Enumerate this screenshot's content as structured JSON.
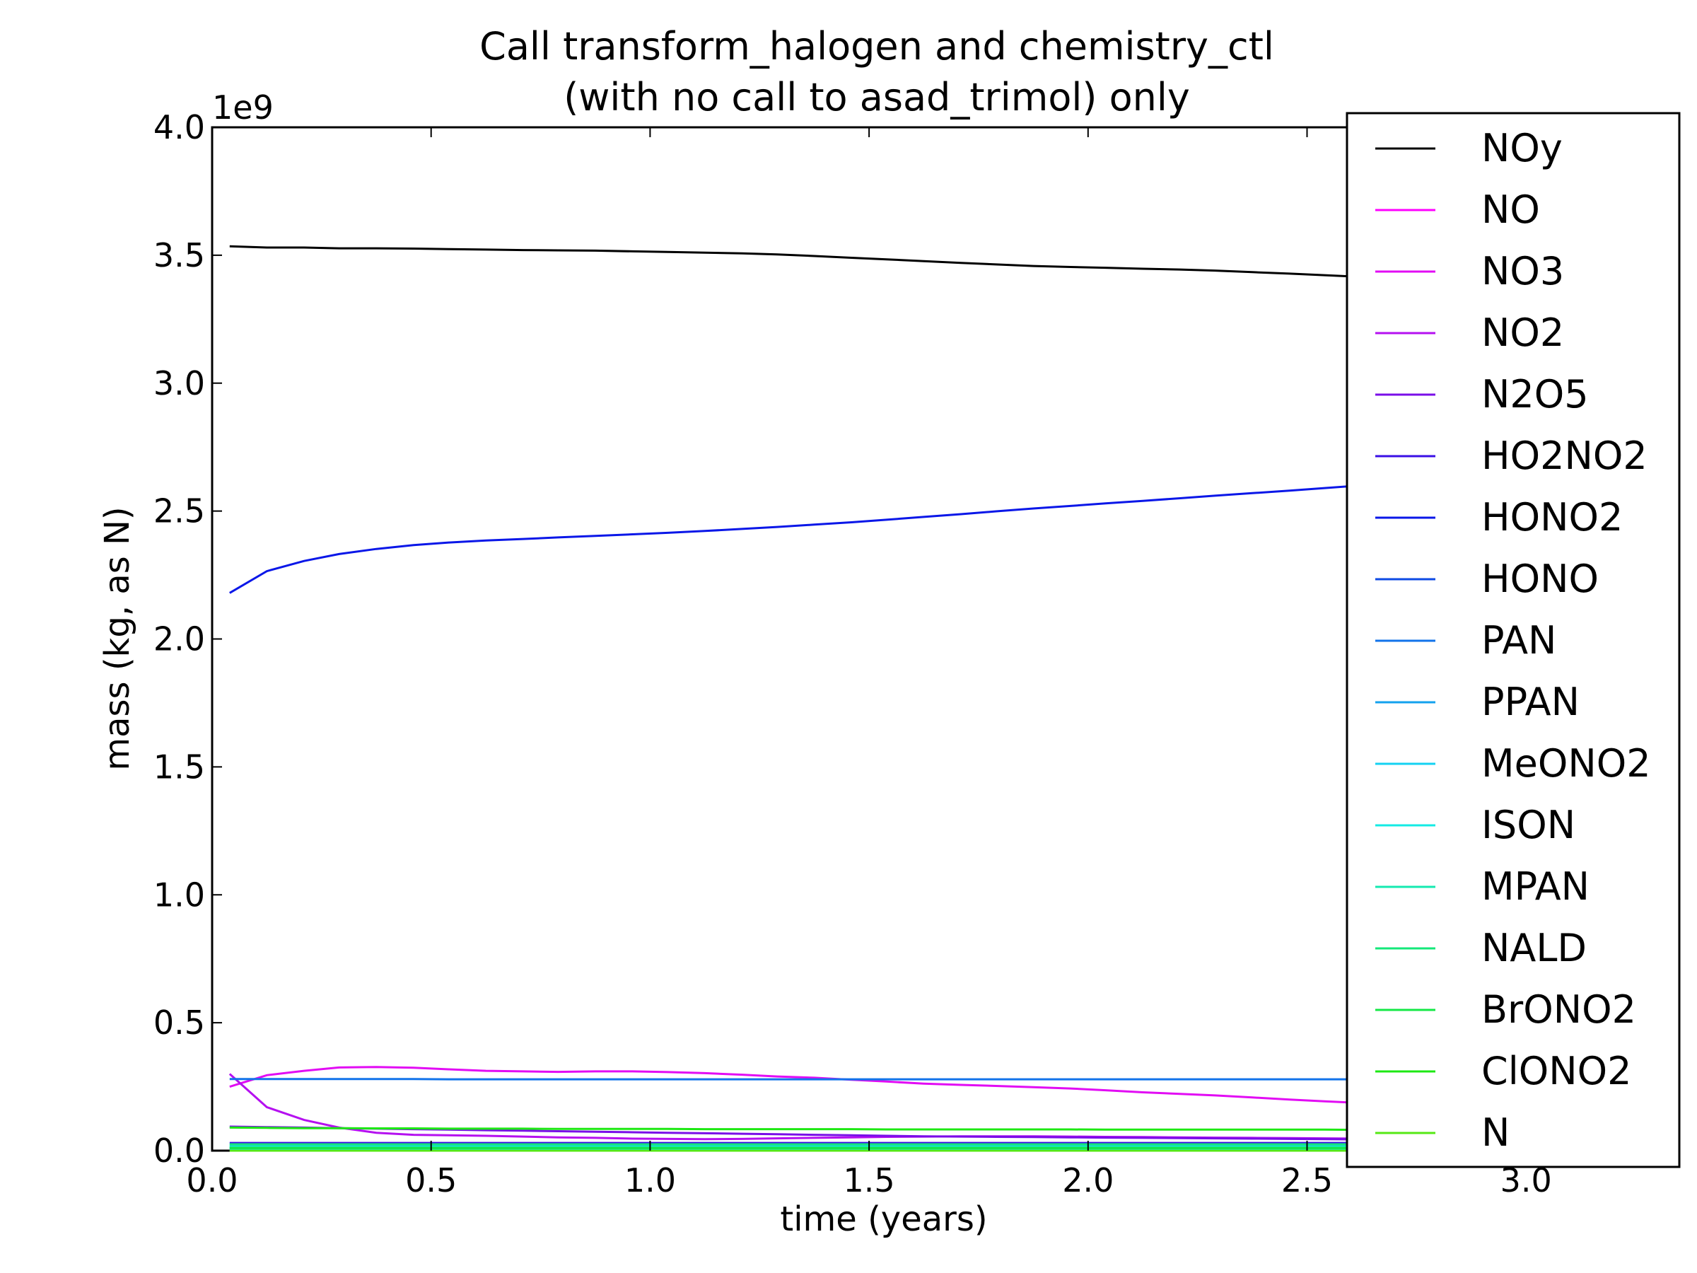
{
  "chart_data": {
    "type": "line",
    "title_line1": "Call transform_halogen and chemistry_ctl",
    "title_line2": "(with no call to asad_trimol) only",
    "xlabel": "time (years)",
    "ylabel": "mass (kg, as N)",
    "y_offset_label": "1e9",
    "xlim": [
      0.0,
      3.35
    ],
    "ylim": [
      0.0,
      4.0
    ],
    "x_scale": 1,
    "y_scale": 1000000000,
    "grid": false,
    "legend_position": "right",
    "x_ticks": [
      0.0,
      0.5,
      1.0,
      1.5,
      2.0,
      2.5,
      3.0
    ],
    "x_tick_labels": [
      "0.0",
      "0.5",
      "1.0",
      "1.5",
      "2.0",
      "2.5",
      "3.0"
    ],
    "y_ticks": [
      0.0,
      0.5,
      1.0,
      1.5,
      2.0,
      2.5,
      3.0,
      3.5,
      4.0
    ],
    "y_tick_labels": [
      "0.0",
      "0.5",
      "1.0",
      "1.5",
      "2.0",
      "2.5",
      "3.0",
      "3.5",
      "4.0"
    ],
    "x": [
      0.04,
      0.125,
      0.21,
      0.29,
      0.375,
      0.46,
      0.54,
      0.625,
      0.71,
      0.79,
      0.875,
      0.96,
      1.04,
      1.125,
      1.21,
      1.29,
      1.375,
      1.46,
      1.54,
      1.625,
      1.71,
      1.79,
      1.875,
      1.96,
      2.04,
      2.125,
      2.21,
      2.29,
      2.375,
      2.46,
      2.54,
      2.625,
      2.71,
      2.79,
      2.875,
      2.96,
      3.04,
      3.125,
      3.21,
      3.29
    ],
    "series": [
      {
        "name": "NOy",
        "color": "#000000",
        "values": [
          3.535,
          3.53,
          3.53,
          3.527,
          3.527,
          3.526,
          3.524,
          3.522,
          3.52,
          3.519,
          3.518,
          3.515,
          3.513,
          3.51,
          3.507,
          3.503,
          3.497,
          3.49,
          3.484,
          3.477,
          3.47,
          3.464,
          3.458,
          3.454,
          3.451,
          3.447,
          3.444,
          3.44,
          3.434,
          3.428,
          3.422,
          3.415,
          3.408,
          3.402,
          3.396,
          3.39,
          3.384,
          3.378,
          3.372,
          3.366
        ]
      },
      {
        "name": "NO",
        "color": "#ff00ff",
        "values": [
          0.0,
          0.0,
          0.0,
          0.0,
          0.0,
          0.0,
          0.0,
          0.0,
          0.0,
          0.0,
          0.0,
          0.0,
          0.0,
          0.0,
          0.0,
          0.0,
          0.0,
          0.0,
          0.0,
          0.0,
          0.0,
          0.0,
          0.0,
          0.0,
          0.0,
          0.0,
          0.0,
          0.0,
          0.0,
          0.0,
          0.0,
          0.0,
          0.0,
          0.0,
          0.0,
          0.0,
          0.0,
          0.0,
          0.0,
          0.0
        ]
      },
      {
        "name": "NO3",
        "color": "#e20cf4",
        "values": [
          0.25,
          0.295,
          0.312,
          0.325,
          0.327,
          0.324,
          0.318,
          0.312,
          0.31,
          0.308,
          0.31,
          0.31,
          0.307,
          0.303,
          0.297,
          0.29,
          0.285,
          0.277,
          0.27,
          0.262,
          0.257,
          0.253,
          0.248,
          0.243,
          0.236,
          0.228,
          0.222,
          0.216,
          0.208,
          0.2,
          0.193,
          0.186,
          0.178,
          0.171,
          0.165,
          0.16,
          0.155,
          0.15,
          0.146,
          0.142
        ]
      },
      {
        "name": "NO2",
        "color": "#b510f0",
        "values": [
          0.3,
          0.17,
          0.12,
          0.09,
          0.07,
          0.062,
          0.06,
          0.058,
          0.055,
          0.052,
          0.05,
          0.047,
          0.046,
          0.045,
          0.046,
          0.048,
          0.05,
          0.052,
          0.054,
          0.055,
          0.056,
          0.056,
          0.056,
          0.055,
          0.054,
          0.053,
          0.052,
          0.051,
          0.05,
          0.049,
          0.048,
          0.047,
          0.046,
          0.045,
          0.045,
          0.044,
          0.044,
          0.043,
          0.043,
          0.042
        ]
      },
      {
        "name": "N2O5",
        "color": "#7a0ee8",
        "values": [
          0.094,
          0.092,
          0.09,
          0.088,
          0.086,
          0.084,
          0.082,
          0.08,
          0.078,
          0.076,
          0.074,
          0.072,
          0.07,
          0.068,
          0.066,
          0.064,
          0.062,
          0.06,
          0.058,
          0.056,
          0.055,
          0.054,
          0.053,
          0.052,
          0.051,
          0.05,
          0.049,
          0.048,
          0.047,
          0.046,
          0.045,
          0.044,
          0.043,
          0.042,
          0.041,
          0.04,
          0.039,
          0.038,
          0.037,
          0.036
        ]
      },
      {
        "name": "HO2NO2",
        "color": "#3a0fe6",
        "values": [
          0.03,
          0.03,
          0.03,
          0.03,
          0.03,
          0.03,
          0.03,
          0.03,
          0.03,
          0.03,
          0.03,
          0.03,
          0.03,
          0.03,
          0.03,
          0.03,
          0.03,
          0.03,
          0.03,
          0.03,
          0.03,
          0.03,
          0.03,
          0.03,
          0.03,
          0.03,
          0.03,
          0.03,
          0.03,
          0.03,
          0.03,
          0.03,
          0.03,
          0.03,
          0.03,
          0.03,
          0.03,
          0.03,
          0.03,
          0.03
        ]
      },
      {
        "name": "HONO2",
        "color": "#0a17e8",
        "values": [
          2.18,
          2.265,
          2.305,
          2.332,
          2.352,
          2.367,
          2.377,
          2.385,
          2.391,
          2.397,
          2.403,
          2.409,
          2.415,
          2.422,
          2.43,
          2.438,
          2.447,
          2.456,
          2.466,
          2.477,
          2.488,
          2.499,
          2.51,
          2.52,
          2.53,
          2.54,
          2.55,
          2.56,
          2.57,
          2.58,
          2.59,
          2.6,
          2.61,
          2.62,
          2.63,
          2.64,
          2.65,
          2.66,
          2.67,
          2.68
        ]
      },
      {
        "name": "HONO",
        "color": "#0d49e4",
        "values": [
          0.005,
          0.005,
          0.005,
          0.005,
          0.005,
          0.005,
          0.005,
          0.005,
          0.005,
          0.005,
          0.005,
          0.005,
          0.005,
          0.005,
          0.005,
          0.005,
          0.005,
          0.005,
          0.005,
          0.005,
          0.005,
          0.005,
          0.005,
          0.005,
          0.005,
          0.005,
          0.005,
          0.005,
          0.005,
          0.005,
          0.005,
          0.005,
          0.005,
          0.005,
          0.005,
          0.005,
          0.005,
          0.005,
          0.005,
          0.005
        ]
      },
      {
        "name": "PAN",
        "color": "#1273ea",
        "values": [
          0.28,
          0.28,
          0.28,
          0.28,
          0.28,
          0.28,
          0.279,
          0.279,
          0.279,
          0.279,
          0.279,
          0.279,
          0.279,
          0.279,
          0.279,
          0.279,
          0.279,
          0.279,
          0.279,
          0.279,
          0.279,
          0.279,
          0.279,
          0.279,
          0.279,
          0.279,
          0.279,
          0.279,
          0.279,
          0.279,
          0.279,
          0.279,
          0.279,
          0.279,
          0.279,
          0.279,
          0.279,
          0.279,
          0.279,
          0.279
        ]
      },
      {
        "name": "PPAN",
        "color": "#14a2ee",
        "values": [
          0.012,
          0.012,
          0.012,
          0.012,
          0.012,
          0.012,
          0.012,
          0.012,
          0.012,
          0.012,
          0.012,
          0.012,
          0.012,
          0.012,
          0.012,
          0.012,
          0.012,
          0.012,
          0.012,
          0.012,
          0.012,
          0.012,
          0.012,
          0.012,
          0.012,
          0.012,
          0.012,
          0.012,
          0.012,
          0.012,
          0.012,
          0.012,
          0.012,
          0.012,
          0.012,
          0.012,
          0.012,
          0.012,
          0.012,
          0.012
        ]
      },
      {
        "name": "MeONO2",
        "color": "#14d2f2",
        "values": [
          0.02,
          0.02,
          0.02,
          0.02,
          0.02,
          0.02,
          0.02,
          0.02,
          0.02,
          0.02,
          0.02,
          0.02,
          0.02,
          0.02,
          0.02,
          0.02,
          0.02,
          0.02,
          0.02,
          0.02,
          0.02,
          0.02,
          0.02,
          0.02,
          0.02,
          0.02,
          0.02,
          0.02,
          0.02,
          0.02,
          0.02,
          0.02,
          0.02,
          0.02,
          0.02,
          0.02,
          0.02,
          0.02,
          0.02,
          0.02
        ]
      },
      {
        "name": "ISON",
        "color": "#14ebe4",
        "values": [
          0.008,
          0.008,
          0.008,
          0.008,
          0.008,
          0.008,
          0.008,
          0.008,
          0.008,
          0.008,
          0.008,
          0.008,
          0.008,
          0.008,
          0.008,
          0.008,
          0.008,
          0.008,
          0.008,
          0.008,
          0.008,
          0.008,
          0.008,
          0.008,
          0.008,
          0.008,
          0.008,
          0.008,
          0.008,
          0.008,
          0.008,
          0.008,
          0.008,
          0.008,
          0.008,
          0.008,
          0.008,
          0.008,
          0.008,
          0.008
        ]
      },
      {
        "name": "MPAN",
        "color": "#14eab0",
        "values": [
          0.015,
          0.015,
          0.015,
          0.015,
          0.015,
          0.015,
          0.015,
          0.015,
          0.015,
          0.015,
          0.015,
          0.015,
          0.015,
          0.015,
          0.015,
          0.015,
          0.015,
          0.015,
          0.015,
          0.015,
          0.015,
          0.015,
          0.015,
          0.015,
          0.015,
          0.015,
          0.015,
          0.015,
          0.015,
          0.015,
          0.015,
          0.015,
          0.015,
          0.015,
          0.015,
          0.015,
          0.015,
          0.015,
          0.015,
          0.015
        ]
      },
      {
        "name": "NALD",
        "color": "#14e87a",
        "values": [
          0.025,
          0.025,
          0.025,
          0.025,
          0.025,
          0.025,
          0.025,
          0.025,
          0.025,
          0.025,
          0.025,
          0.025,
          0.025,
          0.025,
          0.025,
          0.025,
          0.025,
          0.025,
          0.025,
          0.025,
          0.025,
          0.025,
          0.025,
          0.025,
          0.025,
          0.025,
          0.025,
          0.025,
          0.025,
          0.025,
          0.025,
          0.025,
          0.025,
          0.025,
          0.025,
          0.025,
          0.025,
          0.025,
          0.025,
          0.025
        ]
      },
      {
        "name": "BrONO2",
        "color": "#14e845",
        "values": [
          0.01,
          0.01,
          0.01,
          0.01,
          0.01,
          0.01,
          0.01,
          0.01,
          0.01,
          0.01,
          0.01,
          0.01,
          0.01,
          0.01,
          0.01,
          0.01,
          0.01,
          0.01,
          0.01,
          0.01,
          0.01,
          0.01,
          0.01,
          0.01,
          0.01,
          0.01,
          0.01,
          0.01,
          0.01,
          0.01,
          0.01,
          0.01,
          0.01,
          0.01,
          0.01,
          0.01,
          0.01,
          0.01,
          0.01,
          0.01
        ]
      },
      {
        "name": "ClONO2",
        "color": "#1ee814",
        "values": [
          0.09,
          0.089,
          0.088,
          0.088,
          0.087,
          0.087,
          0.086,
          0.086,
          0.086,
          0.085,
          0.085,
          0.085,
          0.085,
          0.084,
          0.084,
          0.084,
          0.084,
          0.084,
          0.083,
          0.083,
          0.083,
          0.083,
          0.083,
          0.083,
          0.082,
          0.082,
          0.082,
          0.082,
          0.082,
          0.082,
          0.082,
          0.081,
          0.081,
          0.081,
          0.081,
          0.081,
          0.081,
          0.081,
          0.081,
          0.081
        ]
      },
      {
        "name": "N",
        "color": "#55e814",
        "values": [
          0.0,
          0.0,
          0.0,
          0.0,
          0.0,
          0.0,
          0.0,
          0.0,
          0.0,
          0.0,
          0.0,
          0.0,
          0.0,
          0.0,
          0.0,
          0.0,
          0.0,
          0.0,
          0.0,
          0.0,
          0.0,
          0.0,
          0.0,
          0.0,
          0.0,
          0.0,
          0.0,
          0.0,
          0.0,
          0.0,
          0.0,
          0.0,
          0.0,
          0.0,
          0.0,
          0.0,
          0.0,
          0.0,
          0.0,
          0.0
        ]
      }
    ]
  }
}
